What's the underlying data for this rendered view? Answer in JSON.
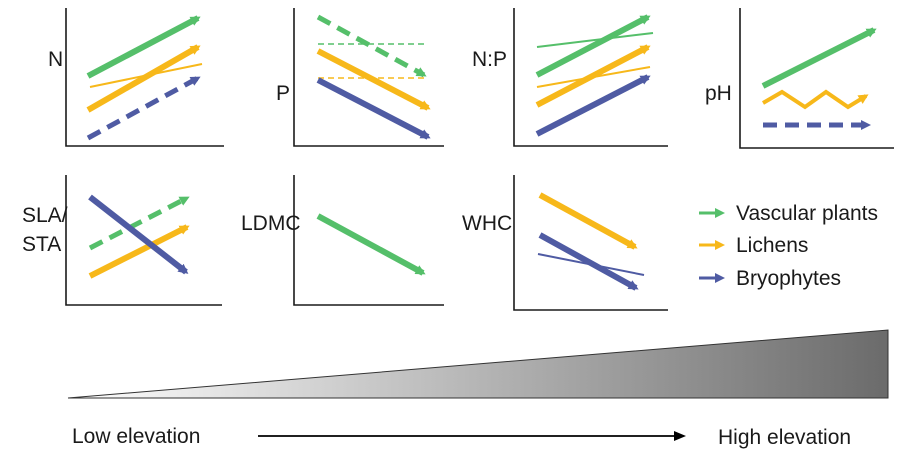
{
  "colors": {
    "vascular": "#55bf6a",
    "lichens": "#f7b81a",
    "bryophytes": "#4f5ba3",
    "axis": "#1a1a1a"
  },
  "panels": [
    {
      "id": "n",
      "label": "N",
      "label2": ""
    },
    {
      "id": "p",
      "label": "P",
      "label2": ""
    },
    {
      "id": "np",
      "label": "N:P",
      "label2": ""
    },
    {
      "id": "ph",
      "label": "pH",
      "label2": ""
    },
    {
      "id": "sla",
      "label": "SLA/",
      "label2": "STA"
    },
    {
      "id": "ldmc",
      "label": "LDMC",
      "label2": ""
    },
    {
      "id": "whc",
      "label": "WHC",
      "label2": ""
    }
  ],
  "legend": {
    "items": [
      {
        "name": "Vascular plants",
        "color_key": "vascular"
      },
      {
        "name": "Lichens",
        "color_key": "lichens"
      },
      {
        "name": "Bryophytes",
        "color_key": "bryophytes"
      }
    ]
  },
  "gradient": {
    "low_label": "Low elevation",
    "high_label": "High elevation"
  }
}
